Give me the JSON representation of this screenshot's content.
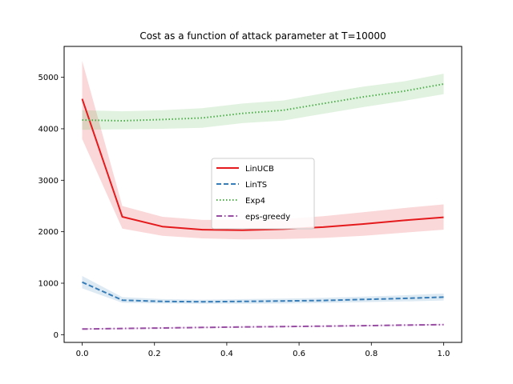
{
  "chart_data": {
    "type": "line",
    "title": "Cost as a function of attack parameter at T=10000",
    "xlabel": "",
    "ylabel": "",
    "xlim": [
      -0.05,
      1.05
    ],
    "ylim": [
      -150,
      5600
    ],
    "xticks": [
      0.0,
      0.2,
      0.4,
      0.6,
      0.8,
      1.0
    ],
    "xtick_labels": [
      "0.0",
      "0.2",
      "0.4",
      "0.6",
      "0.8",
      "1.0"
    ],
    "yticks": [
      0,
      1000,
      2000,
      3000,
      4000,
      5000
    ],
    "ytick_labels": [
      "0",
      "1000",
      "2000",
      "3000",
      "4000",
      "5000"
    ],
    "x": [
      0.0,
      0.111,
      0.222,
      0.333,
      0.444,
      0.556,
      0.667,
      0.778,
      0.889,
      1.0
    ],
    "series": [
      {
        "name": "LinUCB",
        "color": "#e41a1c",
        "style": "solid",
        "values": [
          4580,
          2290,
          2100,
          2040,
          2030,
          2050,
          2090,
          2150,
          2220,
          2280
        ],
        "lower": [
          3800,
          2060,
          1920,
          1870,
          1850,
          1860,
          1880,
          1920,
          1980,
          2040
        ],
        "upper": [
          5320,
          2500,
          2290,
          2230,
          2230,
          2250,
          2300,
          2380,
          2460,
          2530
        ]
      },
      {
        "name": "LinTS",
        "color": "#377eb8",
        "style": "dashed",
        "values": [
          1020,
          670,
          645,
          640,
          645,
          655,
          665,
          685,
          705,
          730
        ],
        "lower": [
          900,
          620,
          605,
          600,
          600,
          605,
          615,
          630,
          645,
          665
        ],
        "upper": [
          1140,
          730,
          690,
          680,
          690,
          700,
          715,
          740,
          765,
          800
        ]
      },
      {
        "name": "Exp4",
        "color": "#4daf4a",
        "style": "dotted",
        "values": [
          4170,
          4155,
          4180,
          4210,
          4300,
          4360,
          4490,
          4620,
          4730,
          4870
        ],
        "lower": [
          3980,
          3990,
          4000,
          4020,
          4110,
          4160,
          4290,
          4420,
          4540,
          4670
        ],
        "upper": [
          4360,
          4340,
          4360,
          4400,
          4490,
          4550,
          4690,
          4820,
          4920,
          5070
        ]
      },
      {
        "name": "eps-greedy",
        "color": "#984ea3",
        "style": "dashdot",
        "values": [
          110,
          120,
          130,
          140,
          150,
          158,
          165,
          175,
          185,
          195
        ],
        "lower": [
          95,
          105,
          115,
          125,
          135,
          143,
          150,
          160,
          170,
          180
        ],
        "upper": [
          125,
          135,
          145,
          155,
          165,
          173,
          180,
          190,
          200,
          210
        ]
      }
    ],
    "legend_position": "center"
  }
}
